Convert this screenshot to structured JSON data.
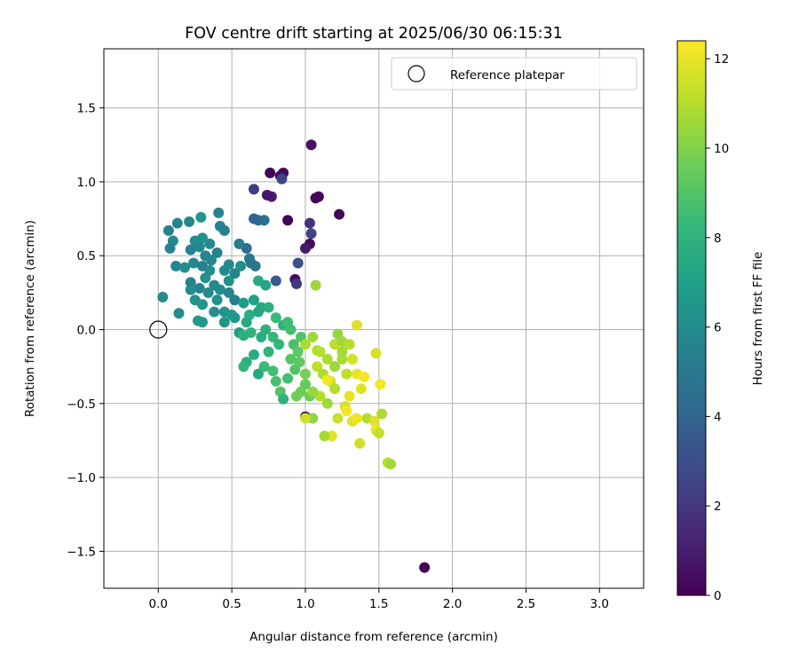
{
  "chart_data": {
    "type": "scatter",
    "title": "FOV centre drift starting at 2025/06/30 06:15:31",
    "xlabel": "Angular distance from reference (arcmin)",
    "ylabel": "Rotation from reference (arcmin)",
    "xlim": [
      -0.37,
      3.3
    ],
    "ylim": [
      -1.75,
      1.9
    ],
    "xticks": [
      0.0,
      0.5,
      1.0,
      1.5,
      2.0,
      2.5,
      3.0
    ],
    "xtick_labels": [
      "0.0",
      "0.5",
      "1.0",
      "1.5",
      "2.0",
      "2.5",
      "3.0"
    ],
    "yticks": [
      -1.5,
      -1.0,
      -0.5,
      0.0,
      0.5,
      1.0,
      1.5
    ],
    "ytick_labels": [
      "−1.5",
      "−1.0",
      "−0.5",
      "0.0",
      "0.5",
      "1.0",
      "1.5"
    ],
    "grid": true,
    "legend": {
      "placement": "top-right",
      "entries": [
        {
          "label": "Reference platepar",
          "marker": "open-circle",
          "color": "#000000"
        }
      ]
    },
    "reference_point": {
      "x": 0.0,
      "y": 0.0,
      "label": "Reference platepar"
    },
    "colorbar": {
      "label": "Hours from first FF file",
      "colormap": "viridis",
      "range": [
        0,
        12.4
      ],
      "ticks": [
        0,
        2,
        4,
        6,
        8,
        10,
        12
      ],
      "tick_labels": [
        "0",
        "2",
        "4",
        "6",
        "8",
        "10",
        "12"
      ]
    },
    "colormap_stops": [
      "#440154",
      "#482878",
      "#3e4989",
      "#31688e",
      "#26828e",
      "#1f9e89",
      "#35b779",
      "#6ece58",
      "#b5de2b",
      "#fde725"
    ],
    "series": [
      {
        "points": [
          [
            1.04,
            1.25,
            0.6
          ],
          [
            0.76,
            1.06,
            0.1
          ],
          [
            0.85,
            1.06,
            0.3
          ],
          [
            0.83,
            1.04,
            0.4
          ],
          [
            0.84,
            1.02,
            2.5
          ],
          [
            0.65,
            0.95,
            2.2
          ],
          [
            0.77,
            0.9,
            1.0
          ],
          [
            0.74,
            0.91,
            0.8
          ],
          [
            1.09,
            0.9,
            0.1
          ],
          [
            1.07,
            0.89,
            0.2
          ],
          [
            1.23,
            0.78,
            0.3
          ],
          [
            0.88,
            0.74,
            0.1
          ],
          [
            1.03,
            0.72,
            1.8
          ],
          [
            1.04,
            0.65,
            2.5
          ],
          [
            1.03,
            0.58,
            0.4
          ],
          [
            1.0,
            0.55,
            0.8
          ],
          [
            0.95,
            0.45,
            3.0
          ],
          [
            0.93,
            0.34,
            0.4
          ],
          [
            0.94,
            0.31,
            2.0
          ],
          [
            0.8,
            0.33,
            3.5
          ],
          [
            0.68,
            0.74,
            4.5
          ],
          [
            0.65,
            0.75,
            4.0
          ],
          [
            0.72,
            0.74,
            4.5
          ],
          [
            1.0,
            -0.59,
            0.2
          ],
          [
            0.07,
            0.67,
            5.5
          ],
          [
            0.13,
            0.72,
            5.6
          ],
          [
            0.21,
            0.73,
            5.7
          ],
          [
            0.29,
            0.76,
            6.5
          ],
          [
            0.41,
            0.79,
            5.6
          ],
          [
            0.1,
            0.6,
            5.8
          ],
          [
            0.08,
            0.55,
            5.5
          ],
          [
            0.25,
            0.6,
            5.9
          ],
          [
            0.3,
            0.62,
            6.2
          ],
          [
            0.35,
            0.58,
            5.8
          ],
          [
            0.42,
            0.7,
            5.5
          ],
          [
            0.45,
            0.67,
            5.4
          ],
          [
            0.22,
            0.54,
            5.6
          ],
          [
            0.28,
            0.56,
            5.7
          ],
          [
            0.32,
            0.5,
            5.6
          ],
          [
            0.4,
            0.52,
            5.5
          ],
          [
            0.48,
            0.44,
            6.0
          ],
          [
            0.12,
            0.43,
            5.6
          ],
          [
            0.18,
            0.42,
            6.0
          ],
          [
            0.24,
            0.45,
            5.8
          ],
          [
            0.3,
            0.43,
            5.4
          ],
          [
            0.36,
            0.47,
            5.7
          ],
          [
            0.45,
            0.4,
            6.0
          ],
          [
            0.52,
            0.38,
            5.6
          ],
          [
            0.56,
            0.43,
            6.2
          ],
          [
            0.62,
            0.48,
            5.0
          ],
          [
            0.63,
            0.45,
            4.8
          ],
          [
            0.66,
            0.43,
            4.8
          ],
          [
            0.6,
            0.55,
            4.6
          ],
          [
            0.55,
            0.58,
            5.2
          ],
          [
            0.22,
            0.32,
            5.4
          ],
          [
            0.28,
            0.28,
            5.6
          ],
          [
            0.32,
            0.35,
            6.2
          ],
          [
            0.38,
            0.3,
            5.8
          ],
          [
            0.42,
            0.27,
            6.0
          ],
          [
            0.48,
            0.25,
            5.6
          ],
          [
            0.52,
            0.2,
            5.2
          ],
          [
            0.22,
            0.27,
            6.0
          ],
          [
            0.25,
            0.2,
            6.2
          ],
          [
            0.3,
            0.17,
            6.4
          ],
          [
            0.34,
            0.25,
            5.9
          ],
          [
            0.4,
            0.2,
            6.2
          ],
          [
            0.45,
            0.12,
            6.4
          ],
          [
            0.52,
            0.08,
            6.6
          ],
          [
            0.58,
            0.18,
            6.8
          ],
          [
            0.14,
            0.11,
            6.0
          ],
          [
            0.27,
            0.06,
            6.6
          ],
          [
            0.3,
            0.05,
            6.8
          ],
          [
            0.38,
            0.12,
            6.2
          ],
          [
            0.45,
            0.05,
            6.4
          ],
          [
            0.5,
            0.1,
            6.6
          ],
          [
            0.03,
            0.22,
            6.0
          ],
          [
            0.55,
            -0.02,
            6.9
          ],
          [
            0.48,
            0.33,
            6.3
          ],
          [
            0.35,
            0.4,
            6.0
          ],
          [
            0.68,
            0.33,
            7.5
          ],
          [
            0.73,
            0.3,
            7.2
          ],
          [
            0.65,
            0.2,
            7.0
          ],
          [
            0.7,
            0.15,
            7.4
          ],
          [
            0.62,
            0.1,
            7.6
          ],
          [
            0.68,
            0.12,
            7.3
          ],
          [
            0.75,
            0.15,
            7.8
          ],
          [
            0.6,
            0.05,
            7.4
          ],
          [
            0.58,
            -0.04,
            7.8
          ],
          [
            0.63,
            -0.02,
            8.0
          ],
          [
            0.7,
            -0.05,
            7.6
          ],
          [
            0.73,
            0.0,
            7.9
          ],
          [
            0.78,
            -0.05,
            8.2
          ],
          [
            0.85,
            0.03,
            8.0
          ],
          [
            0.88,
            0.05,
            8.5
          ],
          [
            0.9,
            0.0,
            8.6
          ],
          [
            0.82,
            -0.1,
            8.2
          ],
          [
            0.75,
            -0.15,
            8.0
          ],
          [
            0.65,
            -0.17,
            7.6
          ],
          [
            0.6,
            -0.22,
            7.8
          ],
          [
            0.58,
            -0.25,
            8.2
          ],
          [
            0.68,
            -0.3,
            7.4
          ],
          [
            0.72,
            -0.25,
            8.4
          ],
          [
            0.78,
            -0.28,
            8.6
          ],
          [
            0.8,
            -0.35,
            8.8
          ],
          [
            0.83,
            -0.42,
            9.0
          ],
          [
            0.85,
            -0.47,
            8.0
          ],
          [
            0.88,
            -0.33,
            8.6
          ],
          [
            0.93,
            -0.27,
            9.0
          ],
          [
            0.96,
            -0.22,
            9.2
          ],
          [
            1.0,
            -0.37,
            9.4
          ],
          [
            0.97,
            -0.42,
            9.6
          ],
          [
            1.03,
            -0.45,
            9.5
          ],
          [
            1.0,
            -0.3,
            9.8
          ],
          [
            0.94,
            -0.45,
            9.6
          ],
          [
            0.92,
            -0.1,
            8.8
          ],
          [
            0.95,
            -0.15,
            9.2
          ],
          [
            0.97,
            -0.05,
            9.0
          ],
          [
            0.8,
            0.08,
            8.4
          ],
          [
            0.9,
            -0.2,
            9.1
          ],
          [
            1.07,
            0.3,
            10.5
          ],
          [
            1.0,
            -0.1,
            10.8
          ],
          [
            1.05,
            -0.05,
            10.6
          ],
          [
            1.1,
            -0.15,
            11.0
          ],
          [
            1.15,
            -0.2,
            10.8
          ],
          [
            1.2,
            -0.1,
            11.2
          ],
          [
            1.22,
            -0.03,
            10.4
          ],
          [
            1.25,
            -0.08,
            10.6
          ],
          [
            1.3,
            -0.1,
            11.0
          ],
          [
            1.08,
            -0.25,
            11.2
          ],
          [
            1.12,
            -0.3,
            10.9
          ],
          [
            1.17,
            -0.35,
            11.4
          ],
          [
            1.2,
            -0.4,
            11.0
          ],
          [
            1.28,
            -0.3,
            11.2
          ],
          [
            1.25,
            -0.2,
            10.8
          ],
          [
            1.32,
            -0.2,
            11.6
          ],
          [
            1.35,
            -0.3,
            12.0
          ],
          [
            1.4,
            -0.32,
            12.2
          ],
          [
            1.38,
            -0.4,
            11.8
          ],
          [
            1.3,
            -0.45,
            12.0
          ],
          [
            1.27,
            -0.52,
            11.6
          ],
          [
            1.32,
            -0.62,
            11.8
          ],
          [
            1.35,
            -0.6,
            12.1
          ],
          [
            1.28,
            -0.55,
            12.2
          ],
          [
            1.22,
            -0.6,
            11.4
          ],
          [
            1.18,
            -0.72,
            11.8
          ],
          [
            1.13,
            -0.72,
            10.7
          ],
          [
            1.05,
            -0.6,
            10.2
          ],
          [
            1.15,
            -0.5,
            10.6
          ],
          [
            1.1,
            -0.45,
            11.0
          ],
          [
            1.0,
            -0.6,
            11.4
          ],
          [
            1.2,
            -0.25,
            10.5
          ],
          [
            1.25,
            -0.15,
            10.7
          ],
          [
            1.35,
            0.03,
            11.8
          ],
          [
            1.42,
            -0.6,
            11.0
          ],
          [
            1.47,
            -0.62,
            11.8
          ],
          [
            1.48,
            -0.68,
            12.1
          ],
          [
            1.5,
            -0.7,
            11.3
          ],
          [
            1.52,
            -0.57,
            10.8
          ],
          [
            1.48,
            -0.16,
            11.6
          ],
          [
            1.51,
            -0.37,
            12.2
          ],
          [
            1.37,
            -0.77,
            11.5
          ],
          [
            1.56,
            -0.9,
            11.2
          ],
          [
            1.58,
            -0.91,
            10.6
          ],
          [
            1.15,
            -0.34,
            12.2
          ],
          [
            1.08,
            -0.14,
            11.0
          ],
          [
            1.05,
            -0.42,
            10.4
          ],
          [
            1.81,
            -1.61,
            0.1
          ]
        ]
      }
    ]
  }
}
